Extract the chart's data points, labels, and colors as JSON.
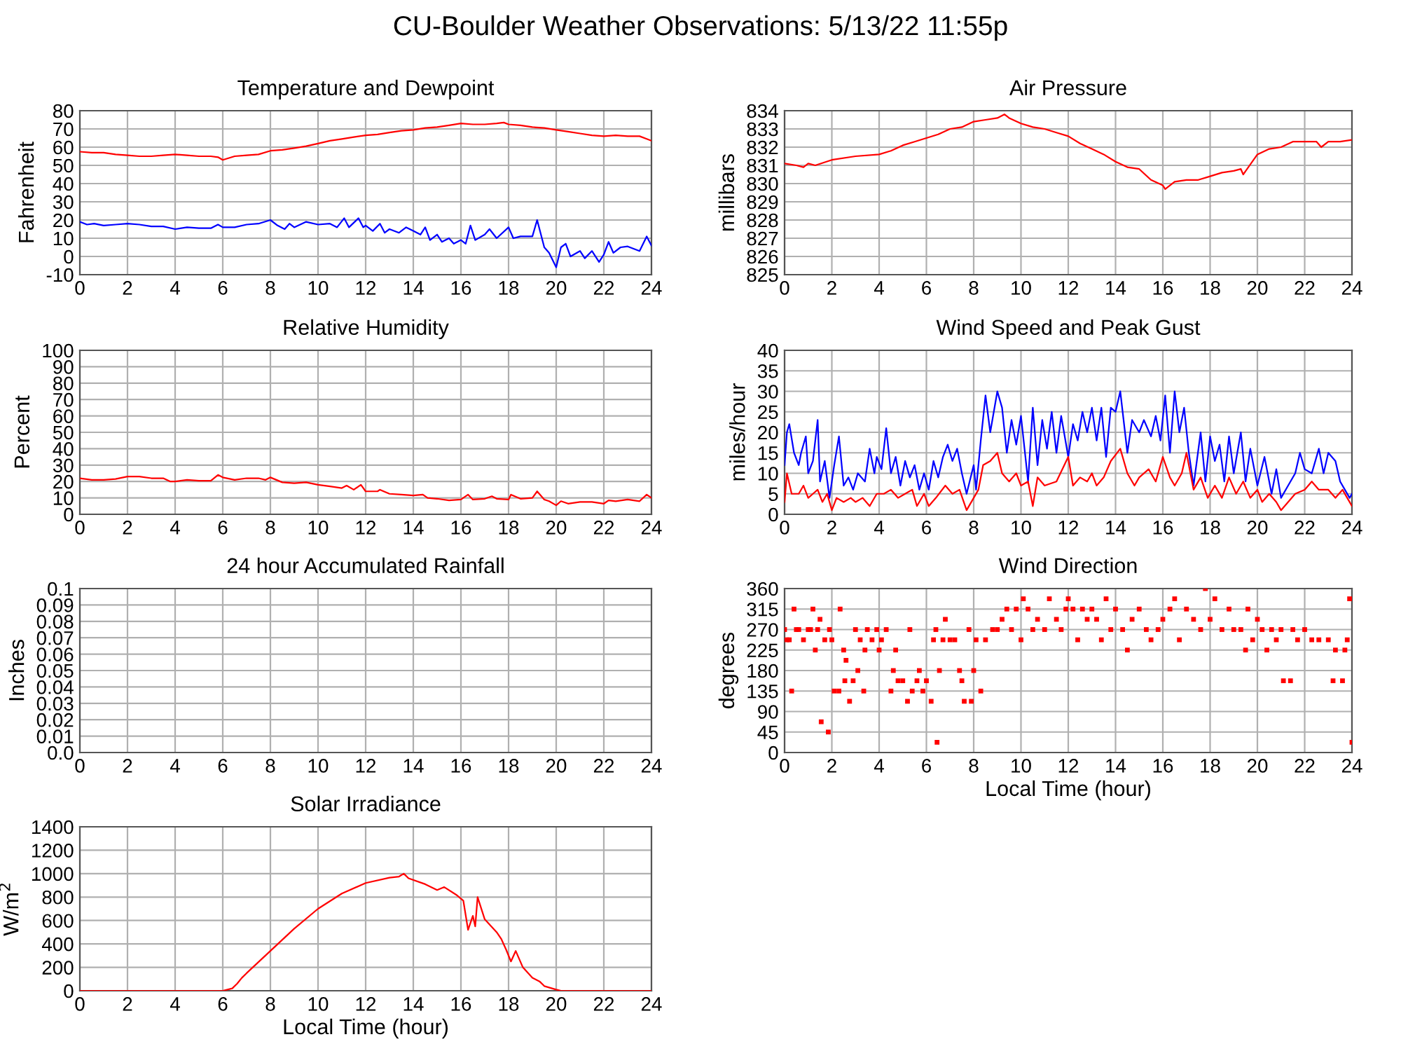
{
  "chart_data": [
    {
      "type": "line",
      "title": "Temperature and Dewpoint",
      "ylabel": "Fahrenheit",
      "annotations": [
        "CU-Boulder Weather Observations: 5/13/22 11:55p"
      ],
      "xlim": [
        0,
        24
      ],
      "xticks": [
        0,
        2,
        4,
        6,
        8,
        10,
        12,
        14,
        16,
        18,
        20,
        22,
        24
      ],
      "ylim": [
        -10,
        80
      ],
      "yticks": [
        -10,
        0,
        10,
        20,
        30,
        40,
        50,
        60,
        70,
        80
      ],
      "grid": true,
      "series": [
        {
          "color": "#ff0000",
          "x": [
            0,
            0.5,
            1,
            1.5,
            2,
            2.5,
            3,
            3.5,
            4,
            4.5,
            5,
            5.5,
            5.8,
            6,
            6.5,
            7,
            7.5,
            8,
            8.5,
            9,
            9.5,
            10,
            10.5,
            11,
            11.5,
            12,
            12.5,
            13,
            13.5,
            14,
            14.5,
            15,
            15.5,
            16,
            16.5,
            17,
            17.5,
            17.8,
            18,
            18.5,
            19,
            19.5,
            20,
            20.5,
            21,
            21.5,
            22,
            22.5,
            23,
            23.5,
            23.8,
            24
          ],
          "values": [
            57.5,
            57,
            57,
            56,
            55.5,
            55,
            55,
            55.5,
            56,
            55.5,
            55,
            55,
            54.5,
            53,
            55,
            55.5,
            56,
            58,
            58.5,
            59.5,
            60.5,
            62,
            63.5,
            64.5,
            65.5,
            66.5,
            67,
            68,
            69,
            69.5,
            70.5,
            71,
            72,
            73,
            72.5,
            72.5,
            73,
            73.5,
            72.5,
            72,
            71,
            70.5,
            69.5,
            68.5,
            67.5,
            66.5,
            66,
            66.5,
            66,
            66,
            64.5,
            63.5
          ]
        },
        {
          "color": "#0000ff",
          "x": [
            0,
            0.3,
            0.6,
            1,
            1.5,
            2,
            2.5,
            3,
            3.5,
            4,
            4.5,
            5,
            5.5,
            5.8,
            6,
            6.5,
            7,
            7.5,
            8,
            8.3,
            8.6,
            8.8,
            9,
            9.5,
            10,
            10.5,
            10.8,
            11.1,
            11.3,
            11.7,
            11.9,
            12,
            12.3,
            12.6,
            12.8,
            13,
            13.4,
            13.7,
            14,
            14.3,
            14.5,
            14.7,
            15,
            15.2,
            15.5,
            15.7,
            16,
            16.2,
            16.4,
            16.6,
            17,
            17.2,
            17.5,
            18,
            18.2,
            18.5,
            19,
            19.2,
            19.5,
            19.7,
            20,
            20.2,
            20.4,
            20.6,
            21,
            21.2,
            21.5,
            21.8,
            22,
            22.2,
            22.4,
            22.7,
            23,
            23.5,
            23.8,
            24
          ],
          "values": [
            19,
            17.5,
            18,
            17,
            17.5,
            18,
            17.5,
            16.5,
            16.5,
            15,
            16,
            15.5,
            15.5,
            17.5,
            16,
            16,
            17.5,
            18,
            20,
            17,
            15,
            18,
            16,
            19,
            17.5,
            18,
            16,
            21,
            16,
            21,
            16,
            17,
            14,
            18,
            13,
            15,
            13,
            16,
            14,
            12,
            16,
            9,
            12,
            8,
            10,
            7,
            9,
            7,
            17,
            9,
            12,
            15,
            10,
            16,
            10,
            11,
            11,
            20,
            5,
            2,
            -6,
            5,
            7,
            0,
            3,
            -1,
            3,
            -3,
            1,
            8,
            2,
            5,
            5.5,
            3,
            11,
            6
          ]
        }
      ]
    },
    {
      "type": "line",
      "title": "Air Pressure",
      "ylabel": "millibars",
      "xlim": [
        0,
        24
      ],
      "xticks": [
        0,
        2,
        4,
        6,
        8,
        10,
        12,
        14,
        16,
        18,
        20,
        22,
        24
      ],
      "ylim": [
        825,
        834
      ],
      "yticks": [
        825,
        826,
        827,
        828,
        829,
        830,
        831,
        832,
        833,
        834
      ],
      "grid": true,
      "series": [
        {
          "color": "#ff0000",
          "x": [
            0,
            0.5,
            0.8,
            1,
            1.3,
            2,
            3,
            4,
            4.5,
            5,
            5.5,
            6,
            6.5,
            7,
            7.5,
            8,
            8.5,
            9,
            9.3,
            9.5,
            10,
            10.5,
            11,
            11.5,
            12,
            12.5,
            13,
            13.5,
            14,
            14.5,
            15,
            15.5,
            16,
            16.1,
            16.5,
            17,
            17.5,
            18,
            18.5,
            19,
            19.3,
            19.4,
            20,
            20.5,
            21,
            21.5,
            22,
            22.5,
            22.7,
            23,
            23.5,
            24
          ],
          "values": [
            831.1,
            831,
            830.9,
            831.1,
            831,
            831.3,
            831.5,
            831.6,
            831.8,
            832.1,
            832.3,
            832.5,
            832.7,
            833,
            833.1,
            833.4,
            833.5,
            833.6,
            833.8,
            833.6,
            833.3,
            833.1,
            833,
            832.8,
            832.6,
            832.2,
            831.9,
            831.6,
            831.2,
            830.9,
            830.8,
            830.2,
            829.9,
            829.7,
            830.1,
            830.2,
            830.2,
            830.4,
            830.6,
            830.7,
            830.8,
            830.5,
            831.6,
            831.9,
            832,
            832.3,
            832.3,
            832.3,
            832,
            832.3,
            832.3,
            832.4
          ]
        }
      ]
    },
    {
      "type": "line",
      "title": "Relative Humidity",
      "ylabel": "Percent",
      "xlim": [
        0,
        24
      ],
      "xticks": [
        0,
        2,
        4,
        6,
        8,
        10,
        12,
        14,
        16,
        18,
        20,
        22,
        24
      ],
      "ylim": [
        0,
        100
      ],
      "yticks": [
        0,
        10,
        20,
        30,
        40,
        50,
        60,
        70,
        80,
        90,
        100
      ],
      "grid": true,
      "series": [
        {
          "color": "#ff0000",
          "x": [
            0,
            0.5,
            1,
            1.5,
            2,
            2.5,
            3,
            3.5,
            3.8,
            4,
            4.5,
            5,
            5.5,
            5.8,
            6,
            6.5,
            7,
            7.5,
            7.8,
            8,
            8.5,
            9,
            9.5,
            10,
            10.5,
            11,
            11.2,
            11.5,
            11.8,
            12,
            12.5,
            12.6,
            13,
            13.5,
            14,
            14.4,
            14.6,
            15,
            15.5,
            16,
            16.3,
            16.5,
            17,
            17.3,
            17.5,
            18,
            18.1,
            18.5,
            19,
            19.2,
            19.5,
            19.7,
            20,
            20.2,
            20.5,
            21,
            21.5,
            22,
            22.2,
            22.5,
            23,
            23.5,
            23.8,
            24
          ],
          "values": [
            22,
            21,
            21,
            21.5,
            23,
            23,
            22,
            22,
            20,
            20,
            21,
            20.5,
            20.5,
            24,
            22.5,
            21,
            22,
            22,
            21,
            22.5,
            19.5,
            19,
            19.5,
            18,
            17,
            16,
            17.5,
            15,
            18,
            14,
            14,
            15,
            12.5,
            12,
            11.5,
            12,
            10,
            9.5,
            8.5,
            9,
            12,
            9,
            9.5,
            11,
            9.5,
            9,
            12,
            9.5,
            10,
            14,
            9,
            8,
            5.5,
            8,
            6.5,
            7.5,
            7.5,
            6.5,
            8.5,
            8,
            9,
            8,
            12,
            10
          ]
        }
      ]
    },
    {
      "type": "line",
      "title": "Wind Speed and Peak Gust",
      "ylabel": "miles/hour",
      "xlim": [
        0,
        24
      ],
      "xticks": [
        0,
        2,
        4,
        6,
        8,
        10,
        12,
        14,
        16,
        18,
        20,
        22,
        24
      ],
      "ylim": [
        0,
        40
      ],
      "yticks": [
        0,
        5,
        10,
        15,
        20,
        25,
        30,
        35,
        40
      ],
      "grid": true,
      "series": [
        {
          "color": "#0000ff",
          "x": [
            0,
            0.1,
            0.2,
            0.4,
            0.6,
            0.7,
            0.9,
            1,
            1.2,
            1.4,
            1.5,
            1.7,
            1.9,
            2.1,
            2.3,
            2.5,
            2.7,
            2.9,
            3.1,
            3.4,
            3.6,
            3.8,
            3.9,
            4.1,
            4.3,
            4.5,
            4.7,
            4.9,
            5.1,
            5.3,
            5.5,
            5.7,
            5.9,
            6.1,
            6.3,
            6.5,
            6.7,
            6.9,
            7.1,
            7.3,
            7.5,
            7.7,
            8,
            8.1,
            8.3,
            8.5,
            8.7,
            9,
            9.2,
            9.4,
            9.6,
            9.8,
            10,
            10.3,
            10.5,
            10.7,
            10.9,
            11.1,
            11.3,
            11.5,
            11.7,
            12,
            12.2,
            12.4,
            12.6,
            12.8,
            13,
            13.2,
            13.4,
            13.6,
            13.8,
            14,
            14.2,
            14.5,
            14.7,
            15,
            15.2,
            15.5,
            15.7,
            15.9,
            16.1,
            16.3,
            16.5,
            16.7,
            16.9,
            17.1,
            17.3,
            17.6,
            17.8,
            18,
            18.2,
            18.4,
            18.6,
            18.8,
            19,
            19.3,
            19.5,
            19.7,
            20,
            20.3,
            20.6,
            20.8,
            21,
            21.3,
            21.6,
            21.8,
            22,
            22.3,
            22.6,
            22.8,
            23,
            23.3,
            23.5,
            23.7,
            23.9,
            24
          ],
          "values": [
            12,
            20,
            22,
            15,
            12,
            15,
            19,
            10,
            13,
            23,
            8,
            13,
            4,
            12,
            19,
            7,
            9,
            6,
            10,
            8,
            16,
            10,
            14,
            11,
            21,
            10,
            14,
            7,
            13,
            9,
            12,
            6,
            10,
            6,
            13,
            9,
            14,
            17,
            13,
            16,
            10,
            5,
            12,
            6,
            18,
            29,
            20,
            30,
            26,
            15,
            23,
            17,
            24,
            8,
            26,
            12,
            23,
            16,
            25,
            15,
            24,
            14,
            22,
            18,
            25,
            20,
            26,
            18,
            26,
            14,
            26,
            25,
            30,
            15,
            23,
            20,
            23,
            19,
            24,
            18,
            29,
            15,
            30,
            20,
            26,
            15,
            7,
            20,
            8,
            19,
            13,
            17,
            8,
            19,
            10,
            20,
            8,
            16,
            7,
            14,
            5,
            11,
            4,
            7,
            10,
            15,
            11,
            10,
            16,
            10,
            15,
            13,
            8,
            6,
            4,
            5
          ]
        },
        {
          "color": "#ff0000",
          "x": [
            0,
            0.1,
            0.3,
            0.6,
            0.8,
            1,
            1.2,
            1.4,
            1.6,
            1.8,
            2,
            2.2,
            2.5,
            2.8,
            3,
            3.3,
            3.6,
            3.9,
            4.2,
            4.5,
            4.8,
            5.1,
            5.4,
            5.6,
            5.9,
            6.1,
            6.4,
            6.8,
            7.1,
            7.4,
            7.7,
            8,
            8.2,
            8.4,
            8.7,
            9,
            9.2,
            9.5,
            9.8,
            10,
            10.3,
            10.5,
            10.7,
            11,
            11.5,
            12,
            12.2,
            12.5,
            12.8,
            13,
            13.2,
            13.5,
            13.8,
            14.2,
            14.5,
            14.8,
            15,
            15.4,
            15.7,
            16,
            16.3,
            16.5,
            16.8,
            17,
            17.3,
            17.6,
            17.9,
            18.2,
            18.5,
            18.8,
            19.1,
            19.4,
            19.7,
            20,
            20.2,
            20.5,
            20.8,
            21,
            21.3,
            21.6,
            22,
            22.3,
            22.6,
            23,
            23.3,
            23.6,
            23.8,
            24
          ],
          "values": [
            3,
            10,
            5,
            5,
            7,
            4,
            5,
            6,
            3,
            5,
            1,
            4,
            3,
            4,
            3,
            4,
            2,
            5,
            5,
            6,
            4,
            5,
            6,
            2,
            5,
            2,
            4,
            7,
            5,
            6,
            1,
            4,
            6,
            12,
            13,
            15,
            10,
            8,
            10,
            7,
            8,
            2,
            9,
            7,
            8,
            14,
            7,
            9,
            8,
            10,
            7,
            9,
            13,
            16,
            10,
            7,
            9,
            11,
            8,
            14,
            9,
            7,
            10,
            15,
            6,
            9,
            4,
            7,
            4,
            9,
            5,
            8,
            4,
            6,
            3,
            5,
            3,
            1,
            3,
            5,
            6,
            8,
            6,
            6,
            4,
            6,
            4,
            2
          ]
        }
      ]
    },
    {
      "type": "line",
      "title": "24 hour Accumulated Rainfall",
      "ylabel": "Inches",
      "xlim": [
        0,
        24
      ],
      "xticks": [
        0,
        2,
        4,
        6,
        8,
        10,
        12,
        14,
        16,
        18,
        20,
        22,
        24
      ],
      "ylim": [
        0,
        0.1
      ],
      "yticks": [
        {
          "value": 0,
          "label": "0.0"
        },
        0.01,
        0.02,
        0.03,
        0.04,
        0.05,
        0.06,
        0.07,
        0.08,
        0.09,
        0.1
      ],
      "grid": true
    },
    {
      "type": "scatter",
      "title": "Wind Direction",
      "ylabel": "degrees",
      "xlabel": "Local Time (hour)",
      "xlim": [
        0,
        24
      ],
      "xticks": [
        0,
        2,
        4,
        6,
        8,
        10,
        12,
        14,
        16,
        18,
        20,
        22,
        24
      ],
      "ylim": [
        0,
        360
      ],
      "yticks": [
        0,
        45,
        90,
        135,
        180,
        225,
        270,
        315,
        360
      ],
      "grid": true,
      "marker": "square",
      "series": [
        {
          "color": "#ff0000",
          "x": [
            0,
            0.1,
            0.2,
            0.3,
            0.4,
            0.5,
            0.6,
            0.8,
            1,
            1.1,
            1.2,
            1.3,
            1.4,
            1.5,
            1.55,
            1.7,
            1.85,
            1.9,
            2,
            2.1,
            2.3,
            2.35,
            2.5,
            2.55,
            2.6,
            2.75,
            2.9,
            3,
            3.1,
            3.2,
            3.35,
            3.4,
            3.5,
            3.7,
            3.9,
            4,
            4.1,
            4.3,
            4.5,
            4.6,
            4.7,
            4.8,
            5,
            5.2,
            5.3,
            5.4,
            5.6,
            5.7,
            5.85,
            6,
            6.2,
            6.3,
            6.4,
            6.45,
            6.55,
            6.7,
            6.8,
            7,
            7.2,
            7.4,
            7.5,
            7.6,
            7.8,
            7.9,
            8,
            8.1,
            8.3,
            8.5,
            8.8,
            9,
            9.2,
            9.4,
            9.6,
            9.8,
            10,
            10.1,
            10.3,
            10.5,
            10.7,
            11,
            11.2,
            11.5,
            11.7,
            11.9,
            12,
            12.2,
            12.4,
            12.6,
            12.8,
            13,
            13.2,
            13.4,
            13.6,
            13.8,
            14,
            14.3,
            14.5,
            14.7,
            15,
            15.3,
            15.5,
            15.8,
            16,
            16.3,
            16.5,
            16.7,
            17,
            17.3,
            17.6,
            17.8,
            18,
            18.2,
            18.5,
            18.8,
            19,
            19.3,
            19.5,
            19.6,
            19.8,
            20,
            20.2,
            20.4,
            20.6,
            20.8,
            21,
            21.1,
            21.4,
            21.5,
            21.7,
            22,
            22.3,
            22.6,
            23,
            23.2,
            23.3,
            23.6,
            23.7,
            23.8,
            23.9,
            24
          ],
          "values": [
            270,
            247.5,
            247.5,
            135,
            315,
            270,
            270,
            247.5,
            270,
            270,
            315,
            225,
            270,
            292.5,
            67.5,
            247.5,
            45,
            270,
            247.5,
            135,
            135,
            315,
            225,
            157.5,
            202.5,
            112.5,
            157.5,
            270,
            180,
            247.5,
            135,
            225,
            270,
            247.5,
            270,
            225,
            247.5,
            270,
            135,
            180,
            225,
            157.5,
            157.5,
            112.5,
            270,
            135,
            157.5,
            180,
            135,
            157.5,
            112.5,
            247.5,
            270,
            22.5,
            180,
            247.5,
            292.5,
            247.5,
            247.5,
            180,
            157.5,
            112.5,
            270,
            112.5,
            180,
            247.5,
            135,
            247.5,
            270,
            270,
            292.5,
            315,
            270,
            315,
            247.5,
            337.5,
            315,
            270,
            292.5,
            270,
            337.5,
            292.5,
            270,
            315,
            337.5,
            315,
            247.5,
            315,
            292.5,
            315,
            292.5,
            247.5,
            337.5,
            270,
            315,
            270,
            225,
            292.5,
            315,
            270,
            247.5,
            270,
            292.5,
            315,
            337.5,
            247.5,
            315,
            292.5,
            270,
            360,
            292.5,
            337.5,
            270,
            315,
            270,
            270,
            225,
            315,
            247.5,
            292.5,
            270,
            225,
            270,
            247.5,
            270,
            157.5,
            157.5,
            270,
            247.5,
            270,
            247.5,
            247.5,
            247.5,
            157.5,
            225,
            157.5,
            225,
            247.5,
            337.5,
            22.5
          ]
        }
      ]
    },
    {
      "type": "line",
      "title": "Solar Irradiance",
      "ylabel": "W/m$^{2}$",
      "xlabel": "Local Time (hour)",
      "xlim": [
        0,
        24
      ],
      "xticks": [
        0,
        2,
        4,
        6,
        8,
        10,
        12,
        14,
        16,
        18,
        20,
        22,
        24
      ],
      "ylim": [
        0,
        1400
      ],
      "yticks": [
        0,
        200,
        400,
        600,
        800,
        1000,
        1200,
        1400
      ],
      "grid": true,
      "series": [
        {
          "color": "#ff0000",
          "x": [
            0,
            6,
            6.4,
            6.6,
            6.8,
            7,
            8,
            9,
            10,
            11,
            12,
            13,
            13.4,
            13.6,
            13.8,
            14.5,
            15,
            15.3,
            15.8,
            16.1,
            16.3,
            16.5,
            16.6,
            16.7,
            17,
            17.5,
            17.7,
            17.9,
            18.1,
            18.3,
            18.6,
            19,
            19.3,
            19.5,
            20,
            20.2,
            24
          ],
          "values": [
            0,
            0,
            20,
            60,
            110,
            150,
            340,
            530,
            700,
            830,
            920,
            965,
            975,
            1000,
            960,
            910,
            860,
            885,
            820,
            770,
            520,
            640,
            550,
            800,
            610,
            500,
            440,
            350,
            250,
            340,
            200,
            110,
            80,
            40,
            10,
            0,
            0
          ]
        }
      ]
    }
  ]
}
